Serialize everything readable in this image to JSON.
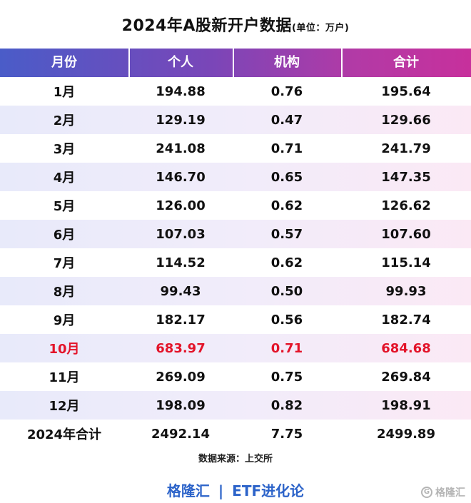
{
  "title": "2024年A股新开户数据",
  "unit": "(单位：万户)",
  "headers": [
    "月份",
    "个人",
    "机构",
    "合计"
  ],
  "rows": [
    {
      "month": "1月",
      "individual": "194.88",
      "institution": "0.76",
      "total": "195.64"
    },
    {
      "month": "2月",
      "individual": "129.19",
      "institution": "0.47",
      "total": "129.66"
    },
    {
      "month": "3月",
      "individual": "241.08",
      "institution": "0.71",
      "total": "241.79"
    },
    {
      "month": "4月",
      "individual": "146.70",
      "institution": "0.65",
      "total": "147.35"
    },
    {
      "month": "5月",
      "individual": "126.00",
      "institution": "0.62",
      "total": "126.62"
    },
    {
      "month": "6月",
      "individual": "107.03",
      "institution": "0.57",
      "total": "107.60"
    },
    {
      "month": "7月",
      "individual": "114.52",
      "institution": "0.62",
      "total": "115.14"
    },
    {
      "month": "8月",
      "individual": "99.43",
      "institution": "0.50",
      "total": "99.93"
    },
    {
      "month": "9月",
      "individual": "182.17",
      "institution": "0.56",
      "total": "182.74"
    },
    {
      "month": "10月",
      "individual": "683.97",
      "institution": "0.71",
      "total": "684.68"
    },
    {
      "month": "11月",
      "individual": "269.09",
      "institution": "0.75",
      "total": "269.84"
    },
    {
      "month": "12月",
      "individual": "198.09",
      "institution": "0.82",
      "total": "198.91"
    }
  ],
  "total_row": {
    "month": "2024年合计",
    "individual": "2492.14",
    "institution": "7.75",
    "total": "2499.89"
  },
  "source": "数据来源：上交所",
  "footer": {
    "brand": "格隆汇",
    "separator": "|",
    "channel": "ETF进化论"
  },
  "watermark": {
    "icon": "g-logo-icon",
    "text": "格隆汇"
  },
  "colors": {
    "highlight": "#e3142a",
    "header_start": "#4a5cc8",
    "header_end": "#c7309c",
    "footer": "#2c63c9"
  }
}
